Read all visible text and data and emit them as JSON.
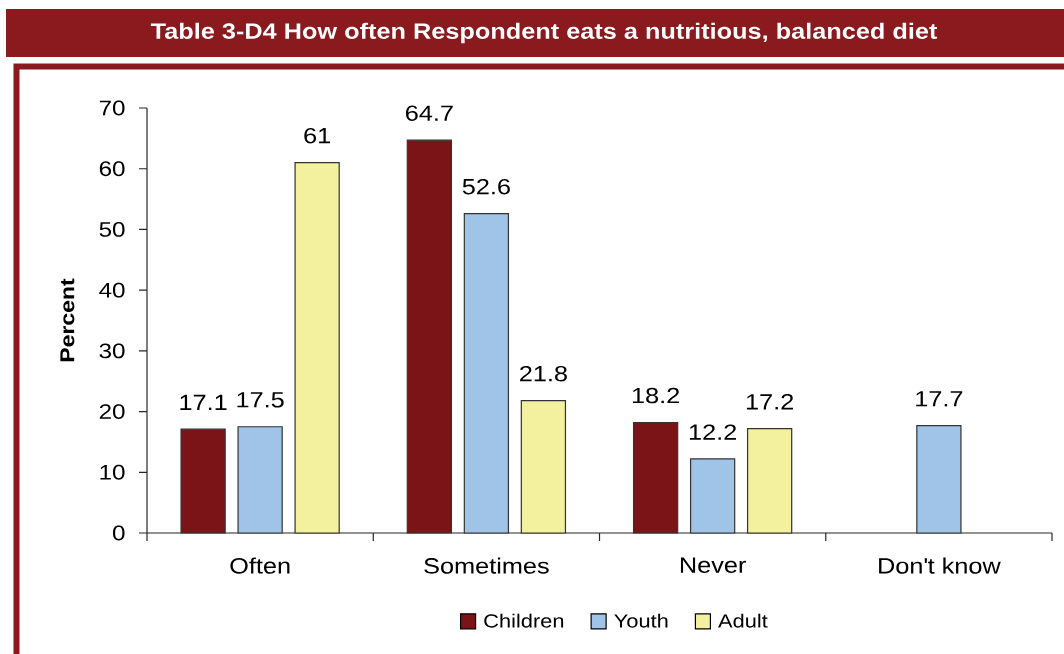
{
  "chart_data": {
    "type": "bar",
    "title": "Table 3-D4 How often Respondent eats a nutritious, balanced diet",
    "ylabel": "Percent",
    "categories": [
      "Often",
      "Sometimes",
      "Never",
      "Don't know"
    ],
    "series": [
      {
        "name": "Children",
        "color": "#7b1416",
        "values": [
          17.1,
          64.7,
          18.2,
          null
        ]
      },
      {
        "name": "Youth",
        "color": "#a0c4e8",
        "values": [
          17.5,
          52.6,
          12.2,
          17.7
        ]
      },
      {
        "name": "Adult",
        "color": "#f3f19d",
        "values": [
          61,
          21.8,
          17.2,
          null
        ]
      }
    ],
    "ylim": [
      0,
      70
    ],
    "yticks": [
      0,
      10,
      20,
      30,
      40,
      50,
      60,
      70
    ],
    "legend": "bottom",
    "data_labels": true
  }
}
